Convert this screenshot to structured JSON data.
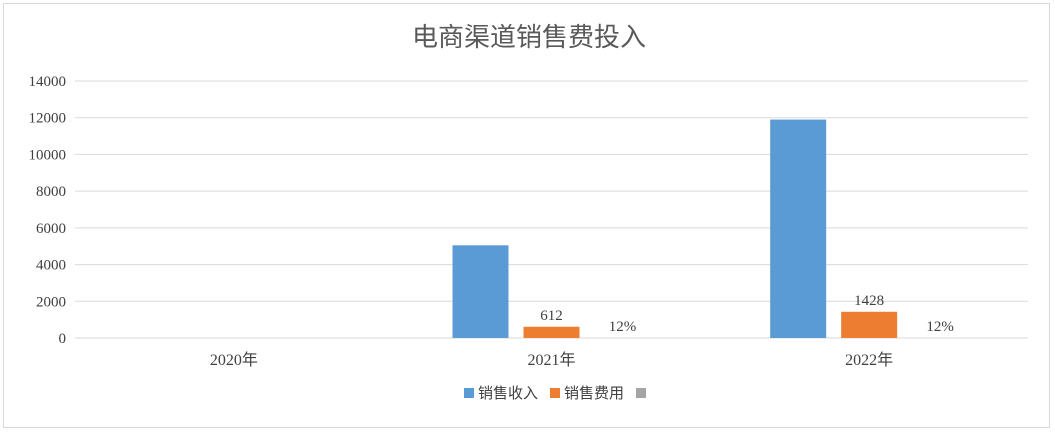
{
  "chart_data": {
    "type": "bar",
    "title": "电商渠道销售费投入",
    "categories": [
      "2020年",
      "2021年",
      "2022年"
    ],
    "ylim": [
      0,
      14000
    ],
    "yticks": [
      "0",
      "2000",
      "4000",
      "6000",
      "8000",
      "10000",
      "12000",
      "14000"
    ],
    "grid": true,
    "legend_position": "bottom",
    "series": [
      {
        "name": "销售收入",
        "values": [
          0,
          5050,
          11900
        ],
        "color": "#5b9bd5",
        "labels": [
          "",
          "",
          ""
        ]
      },
      {
        "name": "销售费用",
        "values": [
          0,
          612,
          1428
        ],
        "color": "#ed7d31",
        "labels": [
          "",
          "612",
          "1428"
        ]
      },
      {
        "name": "",
        "values": [
          0,
          0.12,
          0.12
        ],
        "color": "#a5a5a5",
        "labels": [
          "",
          "12%",
          "12%"
        ]
      }
    ]
  }
}
